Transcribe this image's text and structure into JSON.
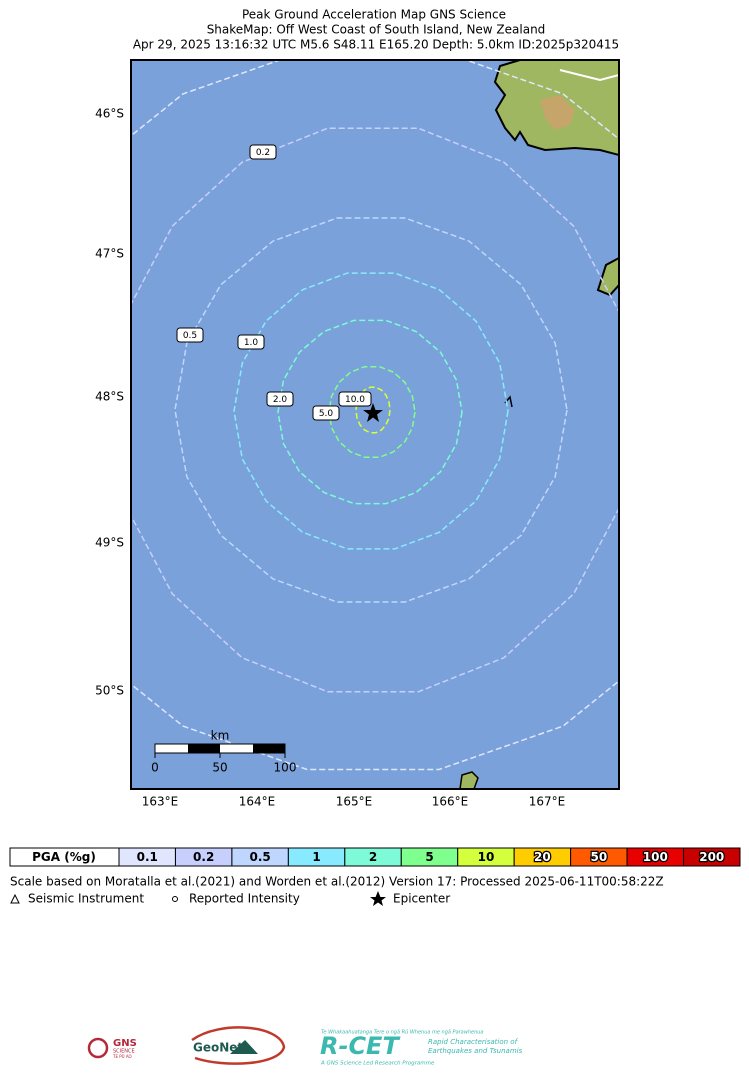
{
  "header": {
    "title": "Peak Ground Acceleration Map GNS Science",
    "subtitle": "ShakeMap: Off West Coast of South Island, New Zealand",
    "event": "Apr 29, 2025 13:16:32 UTC M5.6 S48.11 E165.20 Depth: 5.0km ID:2025p320415"
  },
  "map": {
    "lat_labels": [
      "46°S",
      "47°S",
      "48°S",
      "49°S",
      "50°S"
    ],
    "lon_labels": [
      "163°E",
      "164°E",
      "165°E",
      "166°E",
      "167°E"
    ],
    "contour_labels": [
      "0.2",
      "0.5",
      "1.0",
      "2.0",
      "5.0",
      "10.0"
    ],
    "scale_bar": {
      "unit": "km",
      "ticks": [
        "0",
        "50",
        "100"
      ]
    }
  },
  "legend": {
    "title": "PGA (%g)",
    "levels": [
      "0.1",
      "0.2",
      "0.5",
      "1",
      "2",
      "5",
      "10",
      "20",
      "50",
      "100",
      "200"
    ],
    "colors": [
      "#dfe6fe",
      "#c7cffc",
      "#bfd7ff",
      "#88eaff",
      "#7dfad8",
      "#7fff8e",
      "#d4ff3c",
      "#ffcc00",
      "#ff5a00",
      "#e80000",
      "#c80000"
    ]
  },
  "notes": {
    "scale": "Scale based on Moratalla et al.(2021) and Worden et al.(2012) Version 17: Processed 2025-06-11T00:58:22Z",
    "symbols": [
      "Seismic Instrument",
      "Reported Intensity",
      "Epicenter"
    ]
  },
  "logos": {
    "gns": "GNS",
    "gns_sub": "SCIENCE",
    "gns_maori": "TE PŪ AO",
    "geonet": "GeoNet",
    "rcet": "R-CET",
    "rcet_top": "Te Whakaahuatanga Tere o ngā Rū Whenua me ngā Parawhenua",
    "rcet_line1": "Rapid Characterisation of",
    "rcet_line2": "Earthquakes and Tsunamis",
    "rcet_bottom": "A GNS Science Led Research Programme"
  }
}
